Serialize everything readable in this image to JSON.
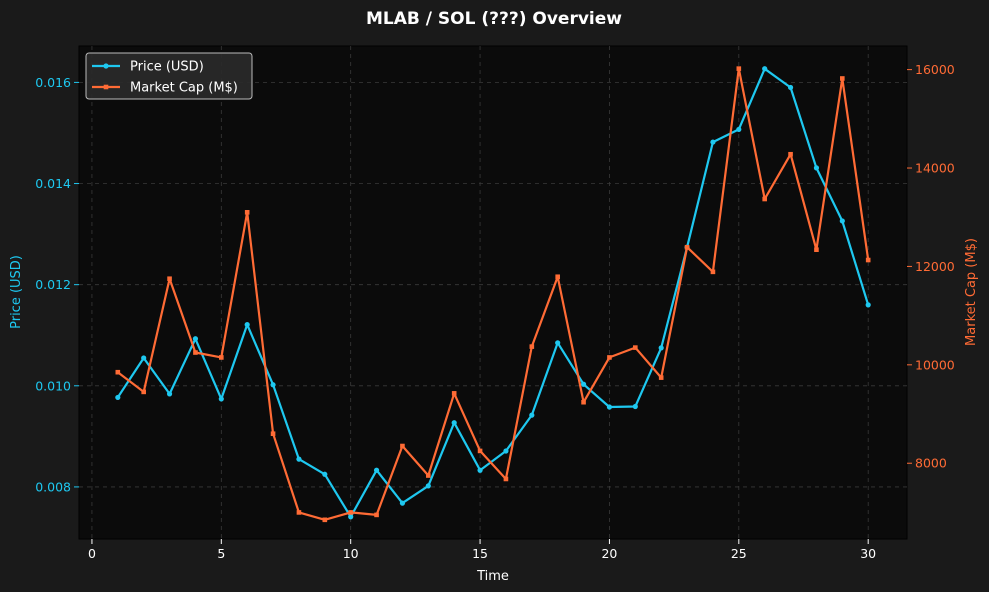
{
  "chart_data": {
    "type": "line",
    "title": "MLAB / SOL (???) Overview",
    "xlabel": "Time",
    "ylabel_left": "Price (USD)",
    "ylabel_right": "Market Cap (M$)",
    "x": [
      1,
      2,
      3,
      4,
      5,
      6,
      7,
      8,
      9,
      10,
      11,
      12,
      13,
      14,
      15,
      16,
      17,
      18,
      19,
      20,
      21,
      22,
      23,
      24,
      25,
      26,
      27,
      28,
      29,
      30
    ],
    "xlim": [
      -0.5,
      31.5
    ],
    "xticks": [
      0,
      5,
      10,
      15,
      20,
      25,
      30
    ],
    "ylim_left": [
      0.00697,
      0.01672
    ],
    "yticks_left": [
      0.008,
      0.01,
      0.012,
      0.014,
      0.016
    ],
    "ytick_labels_left": [
      "0.008",
      "0.010",
      "0.012",
      "0.014",
      "0.016"
    ],
    "ylim_right": [
      6460,
      16480
    ],
    "yticks_right": [
      8000,
      10000,
      12000,
      14000,
      16000
    ],
    "ytick_labels_right": [
      "8000",
      "10000",
      "12000",
      "14000",
      "16000"
    ],
    "grid": true,
    "legend_position": "top-left",
    "series": [
      {
        "name": "Price (USD)",
        "axis": "left",
        "color": "#1ec8f0",
        "marker": "circle",
        "values": [
          0.00977,
          0.01055,
          0.00984,
          0.01093,
          0.00974,
          0.01121,
          0.01002,
          0.00855,
          0.00825,
          0.00741,
          0.00833,
          0.00768,
          0.00802,
          0.00927,
          0.00833,
          0.00871,
          0.00942,
          0.01085,
          0.01003,
          0.00958,
          0.00959,
          0.01075,
          0.01274,
          0.01482,
          0.01507,
          0.01627,
          0.0159,
          0.01431,
          0.01326,
          0.0116
        ]
      },
      {
        "name": "Market Cap (M$)",
        "axis": "right",
        "color": "#ff6b35",
        "marker": "square",
        "values": [
          9850,
          9450,
          11750,
          10250,
          10150,
          13100,
          8600,
          7000,
          6850,
          7000,
          6950,
          8350,
          7750,
          9420,
          8250,
          7680,
          10370,
          11790,
          9240,
          10150,
          10350,
          9740,
          12390,
          11890,
          16020,
          13370,
          14280,
          12340,
          15820,
          12130
        ]
      }
    ]
  }
}
